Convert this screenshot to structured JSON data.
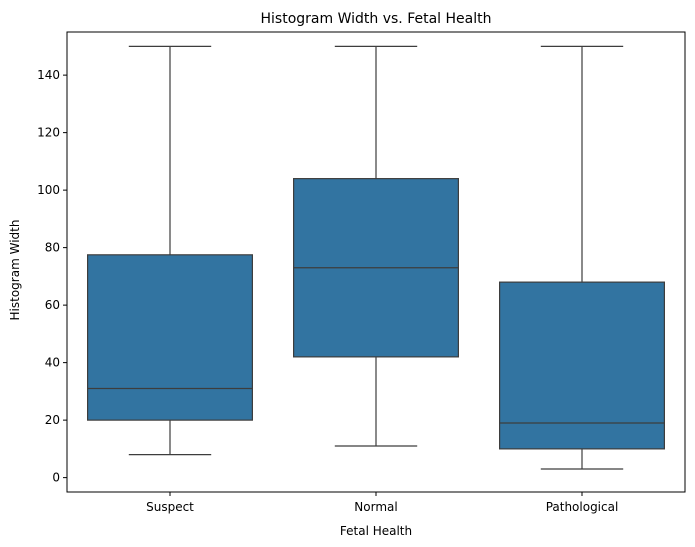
{
  "chart_data": {
    "type": "box",
    "title": "Histogram Width vs. Fetal Health",
    "xlabel": "Fetal Health",
    "ylabel": "Histogram Width",
    "ylim": [
      -5,
      155
    ],
    "yticks": [
      0,
      20,
      40,
      60,
      80,
      100,
      120,
      140
    ],
    "categories": [
      "Suspect",
      "Normal",
      "Pathological"
    ],
    "boxes": [
      {
        "category": "Suspect",
        "whisker_low": 8,
        "q1": 20,
        "median": 31,
        "q3": 77.5,
        "whisker_high": 150
      },
      {
        "category": "Normal",
        "whisker_low": 11,
        "q1": 42,
        "median": 73,
        "q3": 104,
        "whisker_high": 150
      },
      {
        "category": "Pathological",
        "whisker_low": 3,
        "q1": 10,
        "median": 19,
        "q3": 68,
        "whisker_high": 150
      }
    ],
    "box_color": "#3274a1",
    "line_color": "#3d3d3d",
    "grid": false
  }
}
